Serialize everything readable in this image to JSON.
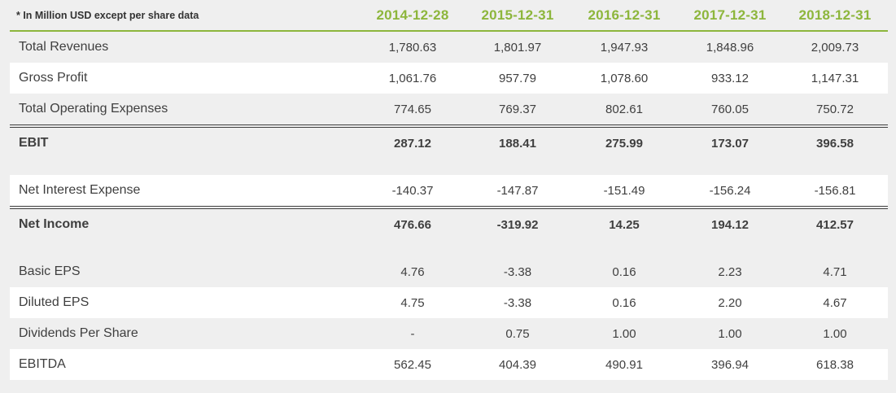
{
  "header": {
    "note": "* In Million USD except per share data",
    "columns": [
      "2014-12-28",
      "2015-12-31",
      "2016-12-31",
      "2017-12-31",
      "2018-12-31"
    ]
  },
  "rows": [
    {
      "label": "Total Revenues",
      "values": [
        "1,780.63",
        "1,801.97",
        "1,947.93",
        "1,848.96",
        "2,009.73"
      ]
    },
    {
      "label": "Gross Profit",
      "values": [
        "1,061.76",
        "957.79",
        "1,078.60",
        "933.12",
        "1,147.31"
      ]
    },
    {
      "label": "Total Operating Expenses",
      "values": [
        "774.65",
        "769.37",
        "802.61",
        "760.05",
        "750.72"
      ]
    },
    {
      "label": "EBIT",
      "values": [
        "287.12",
        "188.41",
        "275.99",
        "173.07",
        "396.58"
      ]
    },
    {
      "label": "Net Interest Expense",
      "values": [
        "-140.37",
        "-147.87",
        "-151.49",
        "-156.24",
        "-156.81"
      ]
    },
    {
      "label": "Net Income",
      "values": [
        "476.66",
        "-319.92",
        "14.25",
        "194.12",
        "412.57"
      ]
    },
    {
      "label": "Basic EPS",
      "values": [
        "4.76",
        "-3.38",
        "0.16",
        "2.23",
        "4.71"
      ]
    },
    {
      "label": "Diluted EPS",
      "values": [
        "4.75",
        "-3.38",
        "0.16",
        "2.20",
        "4.67"
      ]
    },
    {
      "label": "Dividends Per Share",
      "values": [
        "-",
        "0.75",
        "1.00",
        "1.00",
        "1.00"
      ]
    },
    {
      "label": "EBITDA",
      "values": [
        "562.45",
        "404.39",
        "490.91",
        "396.94",
        "618.38"
      ]
    }
  ],
  "colors": {
    "accent": "#8db63c",
    "text": "#3f3f3f",
    "row_alt": "#ffffff",
    "background": "#efefef"
  }
}
